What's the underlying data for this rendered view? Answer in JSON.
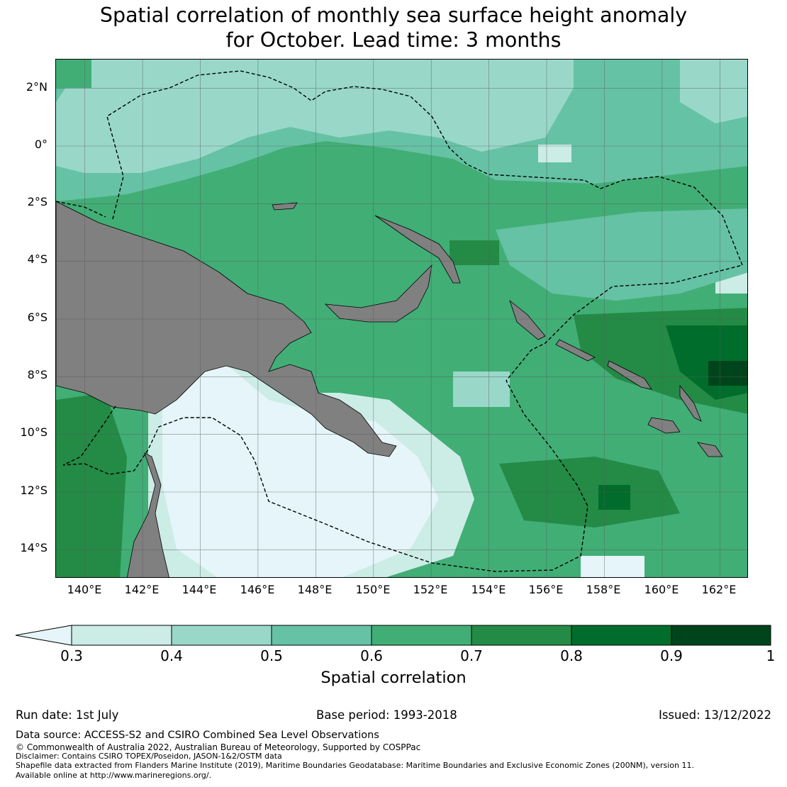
{
  "title": {
    "line1": "Spatial correlation of monthly sea surface height anomaly",
    "line2": "for October. Lead time: 3 months"
  },
  "axes": {
    "lat_ticks": [
      "2°N",
      "0°",
      "2°S",
      "4°S",
      "6°S",
      "8°S",
      "10°S",
      "12°S",
      "14°S"
    ],
    "lon_ticks": [
      "140°E",
      "142°E",
      "144°E",
      "146°E",
      "148°E",
      "150°E",
      "152°E",
      "154°E",
      "156°E",
      "158°E",
      "160°E",
      "162°E"
    ],
    "lat_range": [
      -15,
      3
    ],
    "lon_range": [
      139,
      163
    ]
  },
  "colorbar": {
    "ticks": [
      "0.3",
      "0.4",
      "0.5",
      "0.6",
      "0.7",
      "0.8",
      "0.9",
      "1"
    ],
    "label": "Spatial correlation",
    "extend": "min",
    "under_color": "#e5f5f9",
    "colors": [
      "#ccece6",
      "#99d8c9",
      "#66c2a4",
      "#41ae76",
      "#238b45",
      "#006d2c",
      "#00441b"
    ]
  },
  "map_colors": {
    "land": "#808080",
    "grid": "#5a5a5a",
    "boundary": "#000000"
  },
  "footer": {
    "run_date": "Run date: 1st July",
    "base_period": "Base period: 1993-2018",
    "issued": "Issued: 13/12/2022",
    "data_source": "Data source: ACCESS-S2 and CSIRO Combined Sea Level Observations",
    "copyright": "© Commonwealth of Australia 2022, Australian Bureau of Meteorology, Supported by COSPPac",
    "disclaimer": "Disclaimer: Contains CSIRO TOPEX/Poseidon, JASON-1&2/OSTM data",
    "shapefile": "Shapefile data extracted from Flanders Marine Institute (2019), Maritime Boundaries Geodatabase: Maritime Boundaries and Exclusive Economic Zones (200NM), version 11.",
    "online": "Available online at http://www.marineregions.org/."
  }
}
